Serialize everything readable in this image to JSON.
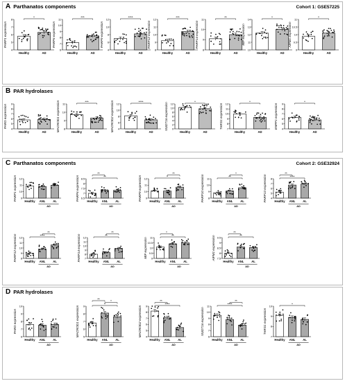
{
  "sections": [
    {
      "letter": "A",
      "title": "Parthanatos components",
      "cohort": "Cohort 1: GSE57225"
    },
    {
      "letter": "B",
      "title": "PAR hydrolases",
      "cohort": ""
    },
    {
      "letter": "C",
      "title": "Parthanatos components",
      "cohort": "Cohort 2: GSE32924"
    },
    {
      "letter": "D",
      "title": "PAR hydrolases",
      "cohort": ""
    }
  ],
  "chart_data": [
    {
      "type": "scatter",
      "section": "A",
      "ylabel": "PARP1 expression",
      "categories": [
        "Healthy",
        "AD"
      ],
      "ylim": [
        4,
        8
      ],
      "yticks": [
        4,
        5,
        6,
        7,
        8
      ],
      "means": [
        5.8,
        6.3
      ],
      "sig": [
        {
          "from": 0,
          "to": 1,
          "label": "*"
        }
      ]
    },
    {
      "type": "scatter",
      "section": "A",
      "ylabel": "PARP6 expression",
      "categories": [
        "Healthy",
        "AD"
      ],
      "ylim": [
        6,
        11
      ],
      "yticks": [
        6,
        7,
        8,
        9,
        10,
        11
      ],
      "means": [
        7.2,
        8.3
      ],
      "sig": [
        {
          "from": 0,
          "to": 1,
          "label": "***"
        }
      ]
    },
    {
      "type": "scatter",
      "section": "A",
      "ylabel": "PARP9 expression",
      "categories": [
        "Healthy",
        "AD"
      ],
      "ylim": [
        4,
        12
      ],
      "yticks": [
        4,
        6,
        8,
        10,
        12
      ],
      "means": [
        7.0,
        8.2
      ],
      "sig": [
        {
          "from": 0,
          "to": 1,
          "label": "****"
        }
      ]
    },
    {
      "type": "scatter",
      "section": "A",
      "ylabel": "PARP12 expression",
      "categories": [
        "Healthy",
        "AD"
      ],
      "ylim": [
        8,
        12
      ],
      "yticks": [
        8,
        9,
        10,
        11,
        12
      ],
      "means": [
        9.2,
        10.4
      ],
      "sig": [
        {
          "from": 0,
          "to": 1,
          "label": "***"
        }
      ]
    },
    {
      "type": "scatter",
      "section": "A",
      "ylabel": "PARP14 expression",
      "categories": [
        "Healthy",
        "AD"
      ],
      "ylim": [
        8,
        11
      ],
      "yticks": [
        8,
        9,
        10,
        11
      ],
      "means": [
        9.1,
        9.5
      ],
      "sig": [
        {
          "from": 0,
          "to": 1,
          "label": "**"
        }
      ]
    },
    {
      "type": "scatter",
      "section": "A",
      "ylabel": "MIF expression",
      "categories": [
        "Healthy",
        "AD"
      ],
      "ylim": [
        10,
        14
      ],
      "yticks": [
        10,
        11,
        12,
        13,
        14
      ],
      "means": [
        12.2,
        12.7
      ],
      "sig": [
        {
          "from": 0,
          "to": 1,
          "label": "*"
        }
      ]
    },
    {
      "type": "scatter",
      "section": "A",
      "ylabel": "AIFM1 expression",
      "categories": [
        "Healthy",
        "AD"
      ],
      "ylim": [
        9,
        11
      ],
      "yticks": [
        9.0,
        9.5,
        10.0,
        10.5,
        11.0
      ],
      "means": [
        9.9,
        10.1
      ],
      "sig": [
        {
          "from": 0,
          "to": 1,
          "label": "*"
        }
      ]
    },
    {
      "type": "scatter",
      "section": "B",
      "ylabel": "PARG expression",
      "categories": [
        "Healthy",
        "AD"
      ],
      "ylim": [
        4,
        9
      ],
      "yticks": [
        4,
        5,
        6,
        7,
        8,
        9
      ],
      "means": [
        5.8,
        5.9
      ],
      "sig": []
    },
    {
      "type": "scatter",
      "section": "B",
      "ylabel": "MACROD1 expression",
      "categories": [
        "Healthy",
        "AD"
      ],
      "ylim": [
        8,
        11
      ],
      "yticks": [
        8,
        9,
        10,
        11
      ],
      "means": [
        9.7,
        9.3
      ],
      "sig": [
        {
          "from": 0,
          "to": 1,
          "label": "***"
        }
      ]
    },
    {
      "type": "scatter",
      "section": "B",
      "ylabel": "MACROD2 expression",
      "categories": [
        "Healthy",
        "AD"
      ],
      "ylim": [
        4,
        12
      ],
      "yticks": [
        4,
        6,
        8,
        10,
        12
      ],
      "means": [
        8.2,
        6.9
      ],
      "sig": [
        {
          "from": 0,
          "to": 1,
          "label": "****"
        }
      ]
    },
    {
      "type": "scatter",
      "section": "B",
      "ylabel": "NUDT16 expression",
      "categories": [
        "Healthy",
        "AD"
      ],
      "ylim": [
        0,
        12
      ],
      "yticks": [
        0,
        2,
        4,
        6,
        8,
        10,
        12
      ],
      "means": [
        10.3,
        9.7
      ],
      "sig": [
        {
          "from": 0,
          "to": 1,
          "label": "*"
        }
      ]
    },
    {
      "type": "scatter",
      "section": "B",
      "ylabel": "TARG1 expression",
      "categories": [
        "Healthy",
        "AD"
      ],
      "ylim": [
        7,
        12
      ],
      "yticks": [
        7,
        8,
        9,
        10,
        11,
        12
      ],
      "means": [
        10.0,
        9.3
      ],
      "sig": [
        {
          "from": 0,
          "to": 1,
          "label": "*"
        }
      ]
    },
    {
      "type": "scatter",
      "section": "B",
      "ylabel": "ENPP1 expression",
      "categories": [
        "Healthy",
        "AD"
      ],
      "ylim": [
        4,
        9
      ],
      "yticks": [
        4,
        5,
        6,
        7,
        8,
        9
      ],
      "means": [
        6.3,
        5.8
      ],
      "sig": [
        {
          "from": 0,
          "to": 1,
          "label": "*"
        }
      ]
    },
    {
      "type": "scatter",
      "section": "C",
      "ylabel": "PARP1 expression",
      "categories": [
        "Healthy",
        "ANL",
        "AL"
      ],
      "ylim": [
        9,
        12
      ],
      "yticks": [
        9,
        10,
        11,
        12
      ],
      "means": [
        10.9,
        10.8,
        11.0
      ],
      "sig": [],
      "group": "AD"
    },
    {
      "type": "scatter",
      "section": "C",
      "ylabel": "PARP6 expression",
      "categories": [
        "Healthy",
        "ANL",
        "AL"
      ],
      "ylim": [
        6.5,
        8.5
      ],
      "yticks": [
        6.5,
        7.0,
        7.5,
        8.0,
        8.5
      ],
      "means": [
        7.0,
        7.3,
        7.3
      ],
      "sig": [
        {
          "from": 0,
          "to": 1,
          "label": "**"
        },
        {
          "from": 0,
          "to": 2,
          "label": "**"
        }
      ],
      "group": "AD"
    },
    {
      "type": "scatter",
      "section": "C",
      "ylabel": "PARP9 expression",
      "categories": [
        "Healthy",
        "ANL",
        "AL"
      ],
      "ylim": [
        9,
        12
      ],
      "yticks": [
        9,
        10,
        11,
        12
      ],
      "means": [
        10.1,
        10.1,
        10.7
      ],
      "sig": [
        {
          "from": 1,
          "to": 2,
          "label": "**"
        },
        {
          "from": 0,
          "to": 2,
          "label": "*"
        }
      ],
      "group": "AD"
    },
    {
      "type": "scatter",
      "section": "C",
      "ylabel": "PARP10 expression",
      "categories": [
        "Healthy",
        "ANL",
        "AL"
      ],
      "ylim": [
        8,
        11
      ],
      "yticks": [
        8,
        9,
        10,
        11
      ],
      "means": [
        8.8,
        9.1,
        9.6
      ],
      "sig": [
        {
          "from": 1,
          "to": 2,
          "label": "*"
        },
        {
          "from": 0,
          "to": 2,
          "label": "**"
        }
      ],
      "group": "AD"
    },
    {
      "type": "scatter",
      "section": "C",
      "ylabel": "PARP13 expression",
      "categories": [
        "Healthy",
        "ANL",
        "AL"
      ],
      "ylim": [
        4,
        8
      ],
      "yticks": [
        4,
        5,
        6,
        7,
        8
      ],
      "means": [
        5.2,
        6.7,
        6.9
      ],
      "sig": [
        {
          "from": 0,
          "to": 1,
          "label": "**"
        },
        {
          "from": 0,
          "to": 2,
          "label": "****"
        }
      ],
      "group": "AD"
    },
    {
      "type": "scatter",
      "section": "C",
      "ylabel": "PARP12 expression",
      "categories": [
        "Healthy",
        "ANL",
        "AL"
      ],
      "ylim": [
        8,
        12
      ],
      "yticks": [
        8,
        9,
        10,
        11,
        12
      ],
      "means": [
        9.0,
        9.8,
        10.6
      ],
      "sig": [
        {
          "from": 1,
          "to": 2,
          "label": "**"
        },
        {
          "from": 0,
          "to": 2,
          "label": "****"
        }
      ],
      "group": "AD"
    },
    {
      "type": "scatter",
      "section": "C",
      "ylabel": "PARP14 expression",
      "categories": [
        "Healthy",
        "ANL",
        "AL"
      ],
      "ylim": [
        7,
        12
      ],
      "yticks": [
        7,
        8,
        9,
        10,
        11,
        12
      ],
      "means": [
        8.0,
        8.4,
        9.4
      ],
      "sig": [
        {
          "from": 1,
          "to": 2,
          "label": "**"
        },
        {
          "from": 0,
          "to": 2,
          "label": "**"
        }
      ],
      "group": "AD"
    },
    {
      "type": "scatter",
      "section": "C",
      "ylabel": "MIF expression",
      "categories": [
        "Healthy",
        "ANL",
        "AL"
      ],
      "ylim": [
        9,
        11
      ],
      "yticks": [
        9.0,
        9.5,
        10.0,
        10.5,
        11.0
      ],
      "means": [
        10.1,
        10.4,
        10.5
      ],
      "sig": [
        {
          "from": 0,
          "to": 1,
          "label": "*"
        },
        {
          "from": 0,
          "to": 2,
          "label": "**"
        }
      ],
      "group": "AD"
    },
    {
      "type": "scatter",
      "section": "C",
      "ylabel": "AIFM1 expression",
      "categories": [
        "Healthy",
        "ANL",
        "AL"
      ],
      "ylim": [
        7.5,
        9.5
      ],
      "yticks": [
        7.5,
        8.0,
        8.5,
        9.0,
        9.5
      ],
      "means": [
        8.0,
        8.6,
        8.55
      ],
      "sig": [
        {
          "from": 0,
          "to": 1,
          "label": "**"
        },
        {
          "from": 0,
          "to": 2,
          "label": "**"
        }
      ],
      "group": "AD"
    },
    {
      "type": "scatter",
      "section": "D",
      "ylabel": "PARG expression",
      "categories": [
        "Healthy",
        "ANL",
        "AL"
      ],
      "ylim": [
        6,
        10
      ],
      "yticks": [
        6,
        7,
        8,
        9,
        10
      ],
      "means": [
        7.6,
        7.5,
        7.6
      ],
      "sig": [],
      "group": "AD"
    },
    {
      "type": "scatter",
      "section": "D",
      "ylabel": "MACROD1 expression",
      "categories": [
        "Healthy",
        "ANL",
        "AL"
      ],
      "ylim": [
        5,
        9
      ],
      "yticks": [
        5,
        6,
        7,
        8,
        9
      ],
      "means": [
        6.8,
        8.1,
        7.6
      ],
      "sig": [
        {
          "from": 0,
          "to": 1,
          "label": "**"
        },
        {
          "from": 1,
          "to": 2,
          "label": "*"
        },
        {
          "from": 0,
          "to": 2,
          "label": "*"
        }
      ],
      "group": "AD"
    },
    {
      "type": "scatter",
      "section": "D",
      "ylabel": "MACROD2 expression",
      "categories": [
        "Healthy",
        "ANL",
        "AL"
      ],
      "ylim": [
        4,
        9
      ],
      "yticks": [
        4,
        5,
        6,
        7,
        8,
        9
      ],
      "means": [
        8.2,
        7.1,
        5.5
      ],
      "sig": [
        {
          "from": 0,
          "to": 1,
          "label": "**"
        },
        {
          "from": 0,
          "to": 2,
          "label": "****"
        }
      ],
      "group": "AD"
    },
    {
      "type": "scatter",
      "section": "D",
      "ylabel": "NUDT16 expression",
      "categories": [
        "Healthy",
        "ANL",
        "AL"
      ],
      "ylim": [
        6,
        11
      ],
      "yticks": [
        6,
        7,
        8,
        9,
        10,
        11
      ],
      "means": [
        9.5,
        8.8,
        7.9
      ],
      "sig": [
        {
          "from": 1,
          "to": 2,
          "label": "**"
        },
        {
          "from": 0,
          "to": 2,
          "label": "****"
        }
      ],
      "group": "AD"
    },
    {
      "type": "scatter",
      "section": "D",
      "ylabel": "TARG1 expression",
      "categories": [
        "Healthy",
        "ANL",
        "AL"
      ],
      "ylim": [
        7,
        10
      ],
      "yticks": [
        7,
        8,
        9,
        10
      ],
      "means": [
        9.1,
        8.9,
        8.7
      ],
      "sig": [
        {
          "from": 0,
          "to": 2,
          "label": "*"
        }
      ],
      "group": "AD"
    }
  ]
}
